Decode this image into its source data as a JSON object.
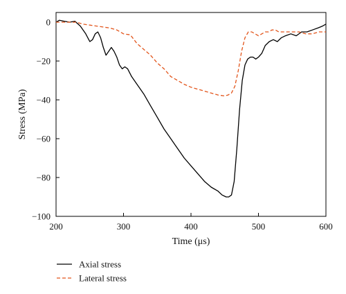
{
  "chart_data": {
    "type": "line",
    "title": "",
    "xlabel": "Time (μs)",
    "ylabel": "Stress (MPa)",
    "xlim": [
      200,
      600
    ],
    "ylim": [
      -100,
      5
    ],
    "xticks": [
      200,
      300,
      400,
      500,
      600
    ],
    "yticks": [
      0,
      -20,
      -40,
      -60,
      -80,
      -100
    ],
    "grid": false,
    "legend_position": "bottom-left, below plot",
    "series": [
      {
        "name": "Axial stress",
        "color": "#000000",
        "style": "solid",
        "x": [
          200,
          205,
          212,
          220,
          228,
          236,
          244,
          250,
          254,
          258,
          262,
          266,
          270,
          274,
          278,
          282,
          286,
          290,
          294,
          298,
          302,
          306,
          312,
          320,
          330,
          340,
          350,
          360,
          370,
          380,
          390,
          400,
          410,
          420,
          430,
          440,
          446,
          452,
          456,
          460,
          464,
          468,
          472,
          476,
          480,
          484,
          488,
          492,
          496,
          500,
          505,
          510,
          516,
          522,
          528,
          534,
          540,
          548,
          556,
          564,
          572,
          580,
          588,
          595,
          600
        ],
        "y": [
          0,
          1,
          0.5,
          0,
          0.5,
          -2,
          -6,
          -10,
          -9,
          -6,
          -5,
          -8,
          -13,
          -17,
          -15,
          -13,
          -15,
          -18,
          -22,
          -24,
          -23,
          -24,
          -28,
          -32,
          -37,
          -43,
          -49,
          -55,
          -60,
          -65,
          -70,
          -74,
          -78,
          -82,
          -85,
          -87,
          -89,
          -90,
          -90,
          -89,
          -82,
          -65,
          -45,
          -30,
          -22,
          -19,
          -18,
          -18,
          -19,
          -18,
          -16,
          -12,
          -10,
          -9,
          -10,
          -8,
          -7,
          -6,
          -7,
          -5,
          -5,
          -4,
          -3,
          -2,
          -1
        ]
      },
      {
        "name": "Lateral stress",
        "color": "#e2541a",
        "style": "dashed",
        "x": [
          200,
          210,
          220,
          230,
          240,
          250,
          260,
          270,
          280,
          290,
          300,
          310,
          320,
          330,
          340,
          350,
          360,
          370,
          380,
          390,
          400,
          410,
          420,
          430,
          440,
          450,
          455,
          460,
          465,
          470,
          475,
          480,
          485,
          490,
          495,
          500,
          505,
          510,
          515,
          520,
          525,
          530,
          540,
          550,
          560,
          570,
          580,
          590,
          600
        ],
        "y": [
          0,
          0,
          0,
          0,
          -1,
          -1.5,
          -2,
          -2.5,
          -3,
          -4,
          -6,
          -6.5,
          -11,
          -14,
          -17,
          -21,
          -24,
          -28,
          -30,
          -32,
          -33.5,
          -34.5,
          -35.5,
          -36.5,
          -37.5,
          -38,
          -37.5,
          -36.5,
          -33,
          -25,
          -15,
          -8,
          -5,
          -5,
          -6,
          -7,
          -6,
          -5,
          -5,
          -4,
          -4,
          -5,
          -5,
          -5,
          -5,
          -6,
          -6,
          -5,
          -5
        ]
      }
    ]
  }
}
